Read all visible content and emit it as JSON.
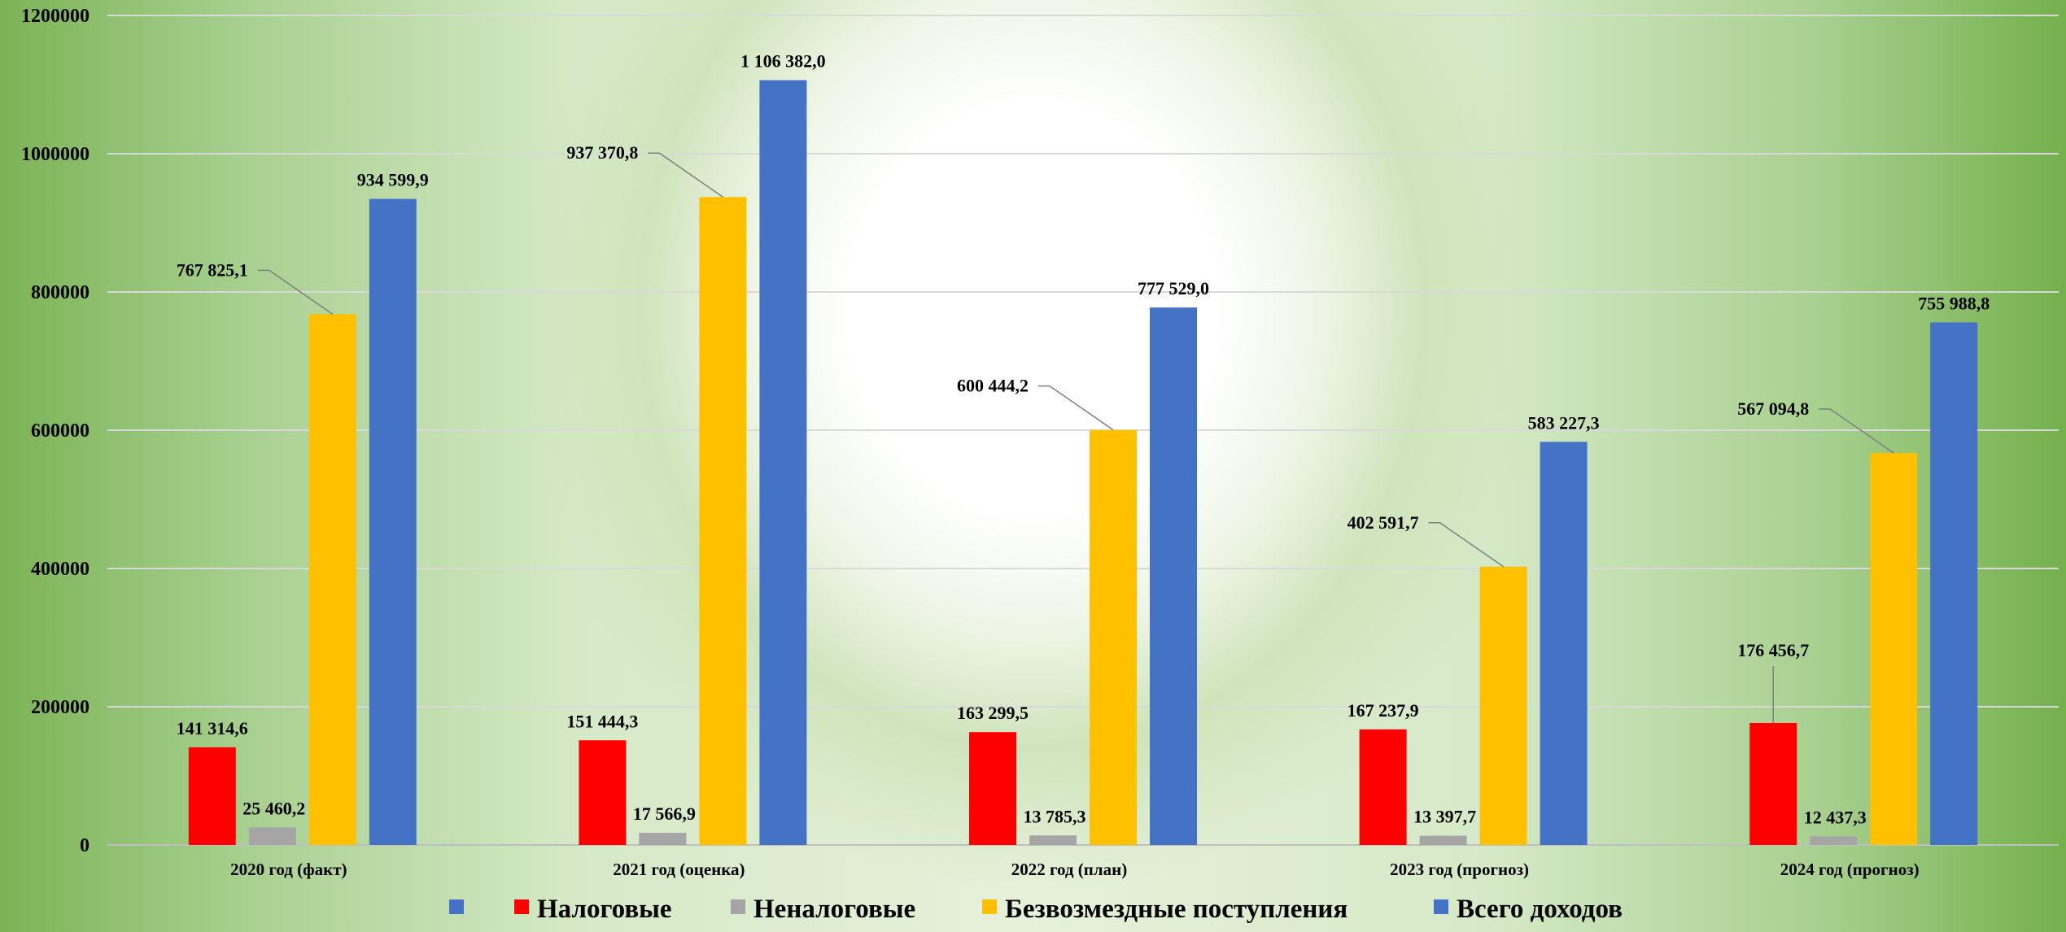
{
  "chart_data": {
    "type": "bar",
    "categories": [
      "2020 год    (факт)",
      "2021 год  (оценка)",
      "2022 год     (план)",
      "2023 год (прогноз)",
      "2024 год (прогноз)"
    ],
    "series": [
      {
        "name": "Налоговые",
        "color": "#ff0000",
        "values": [
          141314.6,
          151444.3,
          163299.5,
          167237.9,
          176456.7
        ],
        "labels": [
          "141 314,6",
          "151 444,3",
          "163 299,5",
          "167 237,9",
          "176 456,7"
        ]
      },
      {
        "name": "Неналоговые",
        "color": "#a5a5a5",
        "values": [
          25460.2,
          17566.9,
          13785.3,
          13397.7,
          12437.3
        ],
        "labels": [
          "25 460,2",
          "17 566,9",
          "13 785,3",
          "13 397,7",
          "12 437,3"
        ]
      },
      {
        "name": "Безвозмездные поступления",
        "color": "#ffc000",
        "values": [
          767825.1,
          937370.8,
          600444.2,
          402591.7,
          567094.8
        ],
        "labels": [
          "767 825,1",
          "937 370,8",
          "600 444,2",
          "402 591,7",
          "567 094,8"
        ]
      },
      {
        "name": "Всего доходов",
        "color": "#4472c4",
        "values": [
          934599.9,
          1106382.0,
          777529.0,
          583227.3,
          755988.8
        ],
        "labels": [
          "934 599,9",
          "1 106 382,0",
          "777 529,0",
          "583 227,3",
          "755 988,8"
        ]
      }
    ],
    "ylim": [
      0,
      1200000
    ],
    "yticks": [
      "0",
      "200000",
      "400000",
      "600000",
      "800000",
      "1000000",
      "1200000"
    ],
    "grid": true,
    "legend_position": "bottom",
    "legend_extra_marker_color": "#4472c4",
    "title": "",
    "xlabel": "",
    "ylabel": ""
  }
}
